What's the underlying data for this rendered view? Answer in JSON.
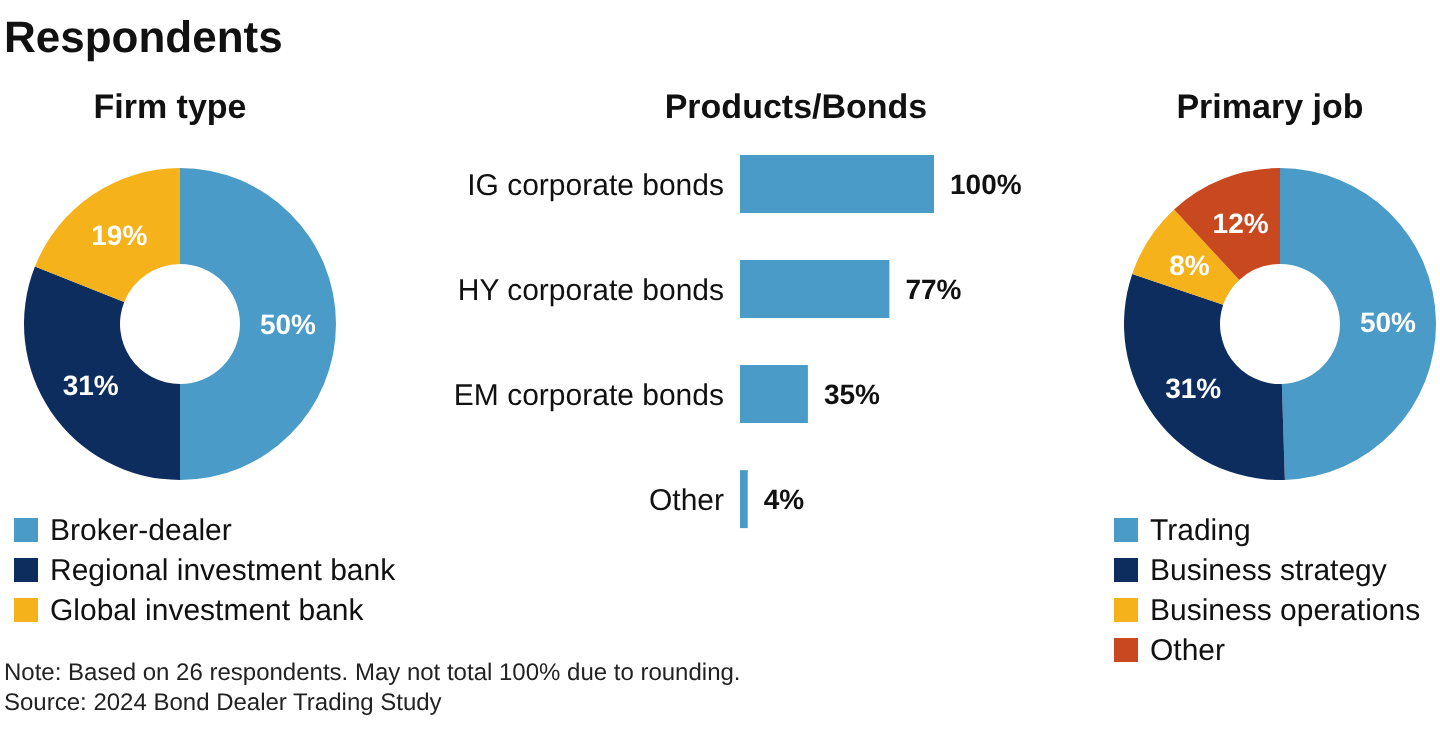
{
  "chart_data": [
    {
      "type": "other",
      "title": "Respondents",
      "annotations": [
        "Note: Based on 26 respondents. May not total 100% due to rounding.",
        "Source: 2024 Bond Dealer Trading Study"
      ]
    },
    {
      "type": "donut",
      "title": "Firm type",
      "categories": [
        "Broker-dealer",
        "Regional investment bank",
        "Global investment bank"
      ],
      "values": [
        50,
        31,
        19
      ],
      "colors": [
        "#4a9bc7",
        "#0d2d5e",
        "#f5b21b"
      ],
      "value_labels": [
        "50%",
        "31%",
        "19%"
      ],
      "legend": "bottom"
    },
    {
      "type": "bar",
      "orientation": "horizontal",
      "title": "Products/Bonds",
      "categories": [
        "IG corporate bonds",
        "HY corporate bonds",
        "EM corporate bonds",
        "Other"
      ],
      "values": [
        100,
        77,
        35,
        4
      ],
      "color": "#4a9bc7",
      "value_labels": [
        "100%",
        "77%",
        "35%",
        "4%"
      ]
    },
    {
      "type": "donut",
      "title": "Primary job",
      "categories": [
        "Trading",
        "Business strategy",
        "Business operations",
        "Other"
      ],
      "values": [
        50,
        31,
        8,
        12
      ],
      "colors": [
        "#4a9bc7",
        "#0d2d5e",
        "#f5b21b",
        "#c8481f"
      ],
      "value_labels": [
        "50%",
        "31%",
        "8%",
        "12%"
      ],
      "legend": "bottom"
    }
  ]
}
